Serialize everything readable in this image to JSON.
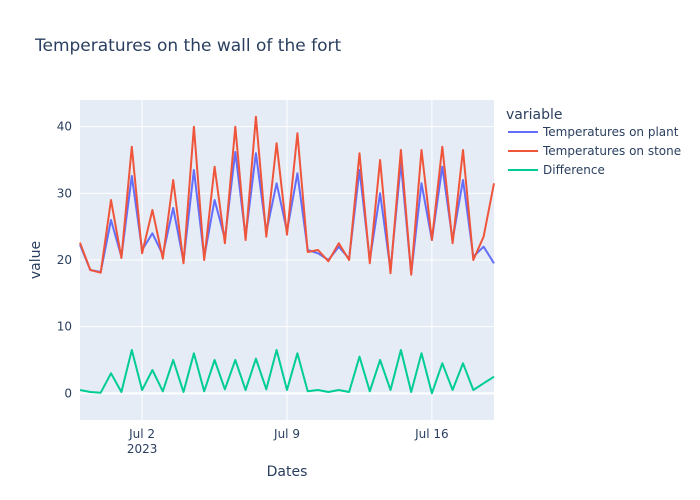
{
  "chart_data": {
    "type": "line",
    "title": "Temperatures on the wall of the fort",
    "xlabel": "Dates",
    "ylabel": "value",
    "legend_title": "variable",
    "legend_position": "right",
    "grid": true,
    "x_range": [
      "2023-06-29",
      "2023-07-19"
    ],
    "ylim": [
      -4,
      44
    ],
    "y_ticks": [
      0,
      10,
      20,
      30,
      40
    ],
    "x_ticks": [
      {
        "date": "2023-07-02",
        "label": "Jul 2",
        "sublabel": "2023"
      },
      {
        "date": "2023-07-09",
        "label": "Jul 9",
        "sublabel": ""
      },
      {
        "date": "2023-07-16",
        "label": "Jul 16",
        "sublabel": ""
      }
    ],
    "x": [
      "2023-06-29 00:00",
      "2023-06-29 12:00",
      "2023-06-30 00:00",
      "2023-06-30 12:00",
      "2023-07-01 00:00",
      "2023-07-01 12:00",
      "2023-07-02 00:00",
      "2023-07-02 12:00",
      "2023-07-03 00:00",
      "2023-07-03 12:00",
      "2023-07-04 00:00",
      "2023-07-04 12:00",
      "2023-07-05 00:00",
      "2023-07-05 12:00",
      "2023-07-06 00:00",
      "2023-07-06 12:00",
      "2023-07-07 00:00",
      "2023-07-07 12:00",
      "2023-07-08 00:00",
      "2023-07-08 12:00",
      "2023-07-09 00:00",
      "2023-07-09 12:00",
      "2023-07-10 00:00",
      "2023-07-10 12:00",
      "2023-07-11 00:00",
      "2023-07-11 12:00",
      "2023-07-12 00:00",
      "2023-07-12 12:00",
      "2023-07-13 00:00",
      "2023-07-13 12:00",
      "2023-07-14 00:00",
      "2023-07-14 12:00",
      "2023-07-15 00:00",
      "2023-07-15 12:00",
      "2023-07-16 00:00",
      "2023-07-16 12:00",
      "2023-07-17 00:00",
      "2023-07-17 12:00",
      "2023-07-18 00:00",
      "2023-07-18 12:00",
      "2023-07-19 00:00"
    ],
    "series": [
      {
        "name": "Temperatures on plant",
        "color": "#636efa",
        "values": [
          22.3,
          18.5,
          18.2,
          26.0,
          20.5,
          32.6,
          21.5,
          24.0,
          20.8,
          27.8,
          19.8,
          33.5,
          20.4,
          29.0,
          23.2,
          36.2,
          23.5,
          36.0,
          24.2,
          31.5,
          24.3,
          33.0,
          21.5,
          21.0,
          20.0,
          22.0,
          20.2,
          33.5,
          20.0,
          30.0,
          18.5,
          34.5,
          18.0,
          31.5,
          23.0,
          34.0,
          23.0,
          32.0,
          20.5,
          22.0,
          19.5
        ]
      },
      {
        "name": "Temperatures on stone",
        "color": "#ef553b",
        "values": [
          22.6,
          18.5,
          18.1,
          29.0,
          20.3,
          37.0,
          21.0,
          27.5,
          20.2,
          32.0,
          19.5,
          40.0,
          20.0,
          34.0,
          22.5,
          40.0,
          23.0,
          41.5,
          23.5,
          37.5,
          23.8,
          39.0,
          21.2,
          21.5,
          19.8,
          22.5,
          20.0,
          36.0,
          19.5,
          35.0,
          18.0,
          36.5,
          17.8,
          36.5,
          23.0,
          37.0,
          22.5,
          36.5,
          20.0,
          23.5,
          31.5
        ]
      },
      {
        "name": "Difference",
        "color": "#00cc96",
        "values": [
          0.5,
          0.2,
          0.1,
          3.0,
          0.2,
          6.5,
          0.5,
          3.5,
          0.3,
          5.0,
          0.2,
          6.0,
          0.3,
          5.0,
          0.6,
          5.0,
          0.5,
          5.2,
          0.6,
          6.5,
          0.5,
          6.0,
          0.3,
          0.5,
          0.2,
          0.5,
          0.2,
          5.5,
          0.3,
          5.0,
          0.5,
          6.5,
          0.2,
          6.0,
          0.0,
          4.5,
          0.5,
          4.5,
          0.5,
          1.5,
          2.5
        ]
      }
    ]
  }
}
